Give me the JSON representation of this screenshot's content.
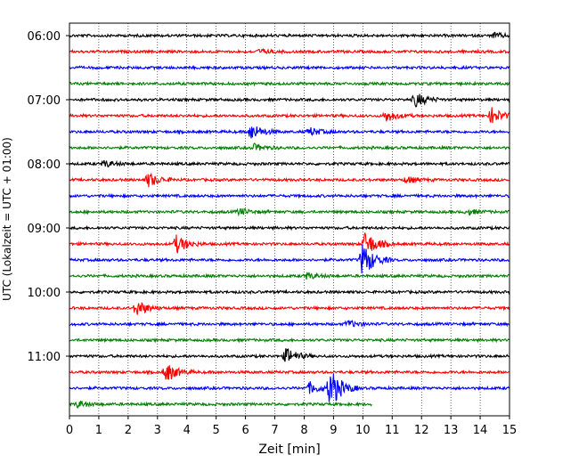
{
  "chart_data": {
    "type": "line",
    "subtype": "helicorder seismogram",
    "xlabel": "Zeit  [min]",
    "ylabel": "UTC (Lokalzeit = UTC + 01:00)",
    "xlim": [
      0,
      15
    ],
    "x_ticks": [
      "0",
      "1",
      "2",
      "3",
      "4",
      "5",
      "6",
      "7",
      "8",
      "9",
      "10",
      "11",
      "12",
      "13",
      "14",
      "15"
    ],
    "y_ticks": [
      "06:00",
      "07:00",
      "08:00",
      "09:00",
      "10:00",
      "11:00"
    ],
    "grid": "vertical dotted at each minute",
    "trace_interval_minutes": 15,
    "trace_colors": [
      "#000000",
      "#ff0000",
      "#0000ff",
      "#008000"
    ],
    "traces": [
      {
        "start": "06:00",
        "end_min": 15,
        "events": [
          {
            "t": 14.5,
            "a": 0.3
          }
        ]
      },
      {
        "start": "06:15",
        "end_min": 15,
        "events": [
          {
            "t": 6.5,
            "a": 0.25
          }
        ]
      },
      {
        "start": "06:30",
        "end_min": 15,
        "events": []
      },
      {
        "start": "06:45",
        "end_min": 15,
        "events": []
      },
      {
        "start": "07:00",
        "end_min": 15,
        "events": [
          {
            "t": 11.8,
            "a": 0.9
          }
        ]
      },
      {
        "start": "07:15",
        "end_min": 15,
        "events": [
          {
            "t": 10.8,
            "a": 0.7
          },
          {
            "t": 14.4,
            "a": 1.0
          }
        ]
      },
      {
        "start": "07:30",
        "end_min": 15,
        "events": [
          {
            "t": 6.2,
            "a": 1.0
          },
          {
            "t": 8.2,
            "a": 0.5
          }
        ]
      },
      {
        "start": "07:45",
        "end_min": 15,
        "events": [
          {
            "t": 6.3,
            "a": 0.4
          }
        ]
      },
      {
        "start": "08:00",
        "end_min": 15,
        "events": [
          {
            "t": 1.2,
            "a": 0.4
          }
        ]
      },
      {
        "start": "08:15",
        "end_min": 15,
        "events": [
          {
            "t": 2.7,
            "a": 0.9
          },
          {
            "t": 11.5,
            "a": 0.4
          }
        ]
      },
      {
        "start": "08:30",
        "end_min": 15,
        "events": []
      },
      {
        "start": "08:45",
        "end_min": 15,
        "events": [
          {
            "t": 5.8,
            "a": 0.4
          },
          {
            "t": 13.6,
            "a": 0.3
          }
        ]
      },
      {
        "start": "09:00",
        "end_min": 15,
        "events": []
      },
      {
        "start": "09:15",
        "end_min": 15,
        "events": [
          {
            "t": 3.65,
            "a": 1.1
          },
          {
            "t": 10.1,
            "a": 1.6
          }
        ]
      },
      {
        "start": "09:30",
        "end_min": 15,
        "events": [
          {
            "t": 10.0,
            "a": 2.2
          }
        ]
      },
      {
        "start": "09:45",
        "end_min": 15,
        "events": [
          {
            "t": 8.1,
            "a": 0.4
          }
        ]
      },
      {
        "start": "10:00",
        "end_min": 15,
        "events": []
      },
      {
        "start": "10:15",
        "end_min": 15,
        "events": [
          {
            "t": 2.3,
            "a": 1.0
          }
        ]
      },
      {
        "start": "10:30",
        "end_min": 15,
        "events": [
          {
            "t": 9.5,
            "a": 0.4
          }
        ]
      },
      {
        "start": "10:45",
        "end_min": 15,
        "events": []
      },
      {
        "start": "11:00",
        "end_min": 15,
        "events": [
          {
            "t": 7.4,
            "a": 1.0
          }
        ]
      },
      {
        "start": "11:15",
        "end_min": 15,
        "events": [
          {
            "t": 3.3,
            "a": 1.2
          }
        ]
      },
      {
        "start": "11:30",
        "end_min": 15,
        "events": [
          {
            "t": 8.2,
            "a": 0.7
          },
          {
            "t": 8.9,
            "a": 2.5
          }
        ]
      },
      {
        "start": "11:45",
        "end_min": 10.3,
        "events": [
          {
            "t": 0.3,
            "a": 0.4
          }
        ]
      }
    ]
  }
}
